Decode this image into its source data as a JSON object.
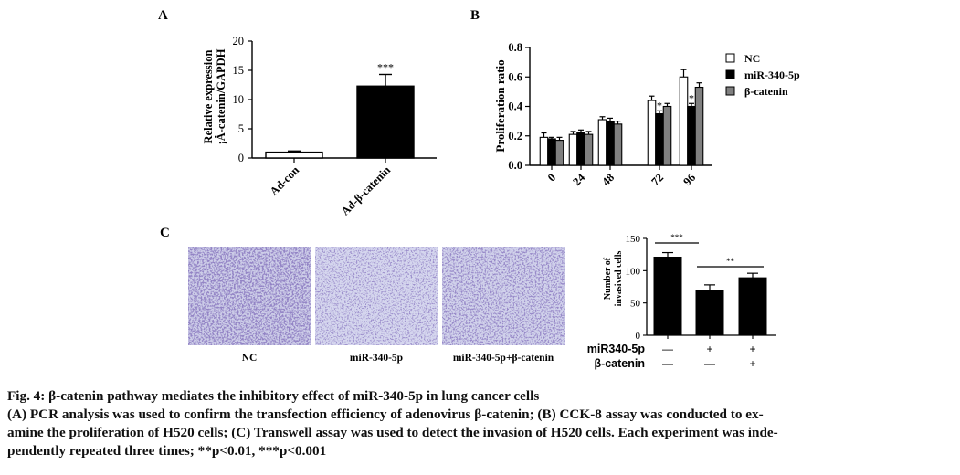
{
  "panels": {
    "a": {
      "letter": "A"
    },
    "b": {
      "letter": "B"
    },
    "c": {
      "letter": "C"
    }
  },
  "chart_data": [
    {
      "type": "bar",
      "panel": "A",
      "ylabel_line1": "Relative expression",
      "ylabel_line2": "¡Â-catenin/GAPDH",
      "categories": [
        "Ad-con",
        "Ad-β-catenin"
      ],
      "values": [
        1,
        12.3
      ],
      "errors": [
        0.2,
        2.0
      ],
      "significance": [
        "",
        "***"
      ],
      "bar_colors": [
        "#ffffff",
        "#000000"
      ],
      "ylim": [
        0,
        20
      ],
      "yticks": [
        "0",
        "5",
        "10",
        "15",
        "20"
      ]
    },
    {
      "type": "bar",
      "panel": "B",
      "ylabel": "Proliferation ratio",
      "categories": [
        "0",
        "24",
        "48",
        "72",
        "96"
      ],
      "series": [
        {
          "name": "NC",
          "color": "#ffffff",
          "values": [
            0.19,
            0.21,
            0.31,
            0.44,
            0.6
          ],
          "errors": [
            0.03,
            0.02,
            0.02,
            0.03,
            0.05
          ]
        },
        {
          "name": "miR-340-5p",
          "color": "#000000",
          "values": [
            0.18,
            0.22,
            0.3,
            0.35,
            0.4
          ],
          "errors": [
            0.01,
            0.02,
            0.02,
            0.02,
            0.02
          ]
        },
        {
          "name": "β-catenin",
          "color": "#808080",
          "values": [
            0.17,
            0.21,
            0.28,
            0.4,
            0.53
          ],
          "errors": [
            0.02,
            0.02,
            0.02,
            0.02,
            0.03
          ]
        }
      ],
      "significance_series": "miR-340-5p",
      "significance": [
        "",
        "",
        "",
        "*",
        "*"
      ],
      "ylim": [
        0,
        0.8
      ],
      "yticks": [
        "0.0",
        "0.2",
        "0.4",
        "0.6",
        "0.8"
      ],
      "legend_position": "right"
    },
    {
      "type": "bar",
      "panel": "C",
      "ylabel_line1": "Number of",
      "ylabel_line2": "invasived cells",
      "categories": [
        "NC",
        "miR-340-5p",
        "miR-340-5p+β-catenin"
      ],
      "values": [
        121,
        70,
        89
      ],
      "errors": [
        7,
        8,
        7
      ],
      "bar_colors": [
        "#000000",
        "#000000",
        "#000000"
      ],
      "ylim": [
        0,
        150
      ],
      "yticks": [
        "0",
        "50",
        "100",
        "150"
      ],
      "brackets": [
        {
          "from": 0,
          "to": 1,
          "label": "***"
        },
        {
          "from": 1,
          "to": 2,
          "label": "**"
        }
      ],
      "factor_rows": [
        {
          "label": "miR340-5p",
          "marks": [
            "—",
            "+",
            "+"
          ]
        },
        {
          "label": "β-catenin",
          "marks": [
            "—",
            "—",
            "+"
          ]
        }
      ]
    }
  ],
  "micrographs": {
    "labels": [
      "NC",
      "miR-340-5p",
      "miR-340-5p+β-catenin"
    ],
    "stain_color": "#5a4c9e",
    "background_color": "#cfd0ea"
  },
  "caption": {
    "title": "Fig. 4: β-catenin pathway mediates the inhibitory effect of miR-340-5p in lung cancer cells",
    "line1": "(A) PCR analysis was used to confirm the transfection efficiency of adenovirus β-catenin; (B) CCK-8 assay was conducted to ex-",
    "line2": "amine the proliferation of H520 cells; (C) Transwell assay was used to detect the invasion of H520 cells. Each experiment was inde-",
    "line3": "pendently repeated three times; **p<0.01, ***p<0.001"
  }
}
